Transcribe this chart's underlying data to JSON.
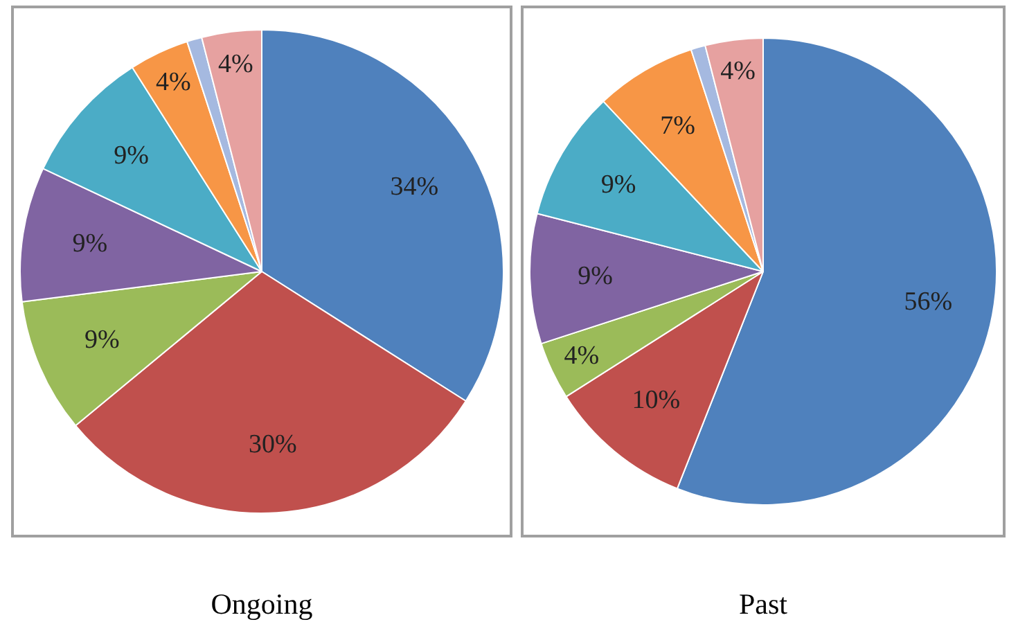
{
  "chart_data": [
    {
      "type": "pie",
      "title": "Ongoing",
      "categories": [
        null,
        null,
        null,
        null,
        null,
        null,
        null,
        null
      ],
      "values": [
        34,
        30,
        9,
        9,
        9,
        4,
        1,
        4
      ],
      "colors": [
        "#4f81bd",
        "#c0504d",
        "#9bbb59",
        "#8064a2",
        "#4bacc6",
        "#f79646",
        "#a5b9e0",
        "#e6a1a0"
      ],
      "value_labels": [
        "34%",
        "30%",
        "9%",
        "9%",
        "9%",
        "4%",
        null,
        "4%"
      ]
    },
    {
      "type": "pie",
      "title": "Past",
      "categories": [
        null,
        null,
        null,
        null,
        null,
        null,
        null,
        null
      ],
      "values": [
        56,
        10,
        4,
        9,
        9,
        7,
        1,
        4
      ],
      "colors": [
        "#4f81bd",
        "#c0504d",
        "#9bbb59",
        "#8064a2",
        "#4bacc6",
        "#f79646",
        "#a5b9e0",
        "#e6a1a0"
      ],
      "value_labels": [
        "56%",
        "10%",
        "4%",
        "9%",
        "9%",
        "7%",
        null,
        "4%"
      ]
    }
  ]
}
